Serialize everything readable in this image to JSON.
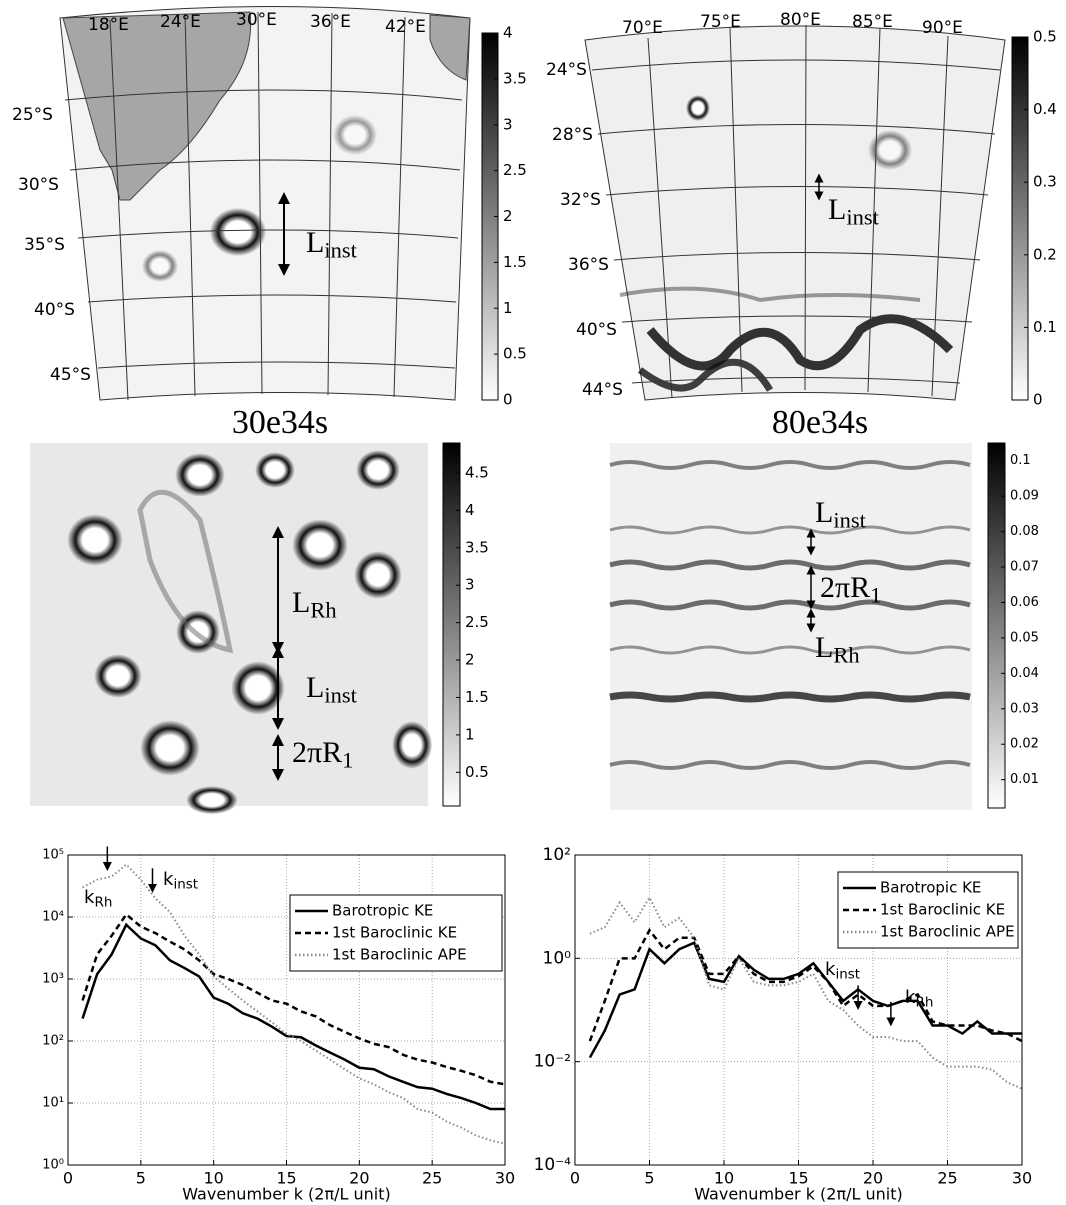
{
  "maps": [
    {
      "lon_labels": [
        "18°E",
        "24°E",
        "30°E",
        "36°E",
        "42°E"
      ],
      "lat_labels": [
        "25°S",
        "30°S",
        "35°S",
        "40°S",
        "45°S"
      ],
      "caption": "30e34s",
      "colorbar_lim": [
        0,
        4
      ],
      "colorbar_ticks": [
        0,
        0.5,
        1,
        1.5,
        2,
        2.5,
        3,
        3.5,
        4
      ],
      "annotations": [
        {
          "main": "L",
          "sub": "inst"
        }
      ]
    },
    {
      "lon_labels": [
        "70°E",
        "75°E",
        "80°E",
        "85°E",
        "90°E"
      ],
      "lat_labels": [
        "24°S",
        "28°S",
        "32°S",
        "36°S",
        "40°S",
        "44°S"
      ],
      "caption": "80e34s",
      "colorbar_lim": [
        0,
        0.5
      ],
      "colorbar_ticks": [
        0,
        0.1,
        0.2,
        0.3,
        0.4,
        0.5
      ],
      "annotations": [
        {
          "main": "L",
          "sub": "inst"
        }
      ]
    },
    {
      "colorbar_lim": [
        0.05,
        4.9
      ],
      "colorbar_ticks": [
        0.5,
        1,
        1.5,
        2,
        2.5,
        3,
        3.5,
        4,
        4.5
      ],
      "annotations": [
        {
          "main": "L",
          "sub": "Rh"
        },
        {
          "main": "L",
          "sub": "inst"
        },
        {
          "main": "2πR",
          "sub": "1"
        }
      ]
    },
    {
      "colorbar_lim": [
        0.002,
        0.105
      ],
      "colorbar_ticks": [
        0.01,
        0.02,
        0.03,
        0.04,
        0.05,
        0.06,
        0.07,
        0.08,
        0.09,
        0.1
      ],
      "annotations": [
        {
          "main": "L",
          "sub": "inst"
        },
        {
          "main": "2πR",
          "sub": "1"
        },
        {
          "main": "L",
          "sub": "Rh"
        }
      ]
    }
  ],
  "chart_data": [
    {
      "type": "line",
      "x_label": "Wavenumber k (2π/L unit)",
      "log_y": true,
      "grid": true,
      "x": [
        1,
        2,
        3,
        4,
        5,
        6,
        7,
        8,
        9,
        10,
        11,
        12,
        13,
        14,
        15,
        16,
        17,
        18,
        19,
        20,
        21,
        22,
        23,
        24,
        25,
        26,
        27,
        28,
        29,
        30
      ],
      "xlim": [
        0,
        30
      ],
      "xticks": [
        0,
        5,
        10,
        15,
        20,
        25,
        30
      ],
      "ylim": [
        1,
        100000
      ],
      "yticks": [
        {
          "value": 1,
          "label": "10⁰"
        },
        {
          "value": 10,
          "label": "10¹"
        },
        {
          "value": 100,
          "label": "10²"
        },
        {
          "value": 1000,
          "label": "10³"
        },
        {
          "value": 10000,
          "label": "10⁴"
        },
        {
          "value": 100000,
          "label": "10⁵"
        }
      ],
      "series": [
        {
          "name": "Barotropic KE",
          "color": "#000000",
          "dash": "solid",
          "values": [
            230,
            1200,
            2500,
            7500,
            4500,
            3500,
            2000,
            1500,
            1100,
            500,
            400,
            280,
            230,
            170,
            120,
            115,
            85,
            65,
            50,
            37,
            35,
            27,
            22,
            18,
            17,
            14,
            12,
            10,
            8,
            8
          ]
        },
        {
          "name": "1st Baroclinic KE",
          "color": "#000000",
          "dash": "dashed",
          "values": [
            450,
            2500,
            5000,
            11000,
            7000,
            5500,
            4000,
            3000,
            2000,
            1200,
            1000,
            800,
            600,
            450,
            400,
            300,
            250,
            180,
            140,
            110,
            90,
            80,
            60,
            50,
            45,
            38,
            33,
            28,
            22,
            20
          ]
        },
        {
          "name": "1st Baroclinic APE",
          "color": "#888888",
          "dash": "dotted",
          "values": [
            30000,
            40000,
            45000,
            70000,
            40000,
            20000,
            12000,
            5000,
            2500,
            1100,
            700,
            450,
            300,
            200,
            130,
            100,
            70,
            50,
            35,
            25,
            20,
            15,
            12,
            8,
            7,
            5,
            4,
            3,
            2.5,
            2.2
          ]
        }
      ],
      "annotations": [
        {
          "main": "k",
          "sub": "Rh",
          "x": 2.7
        },
        {
          "main": "k",
          "sub": "inst",
          "x": 5.8
        }
      ]
    },
    {
      "type": "line",
      "x_label": "Wavenumber k (2π/L unit)",
      "log_y": true,
      "grid": true,
      "x": [
        1,
        2,
        3,
        4,
        5,
        6,
        7,
        8,
        9,
        10,
        11,
        12,
        13,
        14,
        15,
        16,
        17,
        18,
        19,
        20,
        21,
        22,
        23,
        24,
        25,
        26,
        27,
        28,
        29,
        30
      ],
      "xlim": [
        0,
        30
      ],
      "xticks": [
        0,
        5,
        10,
        15,
        20,
        25,
        30
      ],
      "ylim": [
        0.0001,
        100
      ],
      "yticks": [
        {
          "value": 0.0001,
          "label": "10⁻⁴"
        },
        {
          "value": 0.01,
          "label": "10⁻²"
        },
        {
          "value": 1,
          "label": "10⁰"
        },
        {
          "value": 100,
          "label": "10²"
        }
      ],
      "series": [
        {
          "name": "Barotropic KE",
          "color": "#000000",
          "dash": "solid",
          "values": [
            0.012,
            0.04,
            0.2,
            0.25,
            1.5,
            0.8,
            1.5,
            2,
            0.4,
            0.35,
            1.1,
            0.6,
            0.4,
            0.4,
            0.5,
            0.8,
            0.35,
            0.15,
            0.25,
            0.15,
            0.12,
            0.15,
            0.15,
            0.05,
            0.05,
            0.035,
            0.06,
            0.035,
            0.035,
            0.035
          ]
        },
        {
          "name": "1st Baroclinic KE",
          "color": "#000000",
          "dash": "dashed",
          "values": [
            0.025,
            0.15,
            1,
            1,
            3.5,
            1.5,
            2.5,
            2.5,
            0.5,
            0.5,
            1.1,
            0.5,
            0.35,
            0.35,
            0.45,
            0.7,
            0.35,
            0.12,
            0.2,
            0.12,
            0.12,
            0.15,
            0.2,
            0.06,
            0.05,
            0.05,
            0.05,
            0.04,
            0.035,
            0.025
          ]
        },
        {
          "name": "1st Baroclinic APE",
          "color": "#888888",
          "dash": "dotted",
          "values": [
            3,
            4,
            12,
            5,
            15,
            4,
            6,
            2.5,
            0.3,
            0.25,
            1,
            0.35,
            0.3,
            0.3,
            0.35,
            0.5,
            0.15,
            0.1,
            0.05,
            0.03,
            0.03,
            0.025,
            0.025,
            0.012,
            0.008,
            0.008,
            0.008,
            0.007,
            0.004,
            0.003
          ]
        }
      ],
      "annotations": [
        {
          "main": "k",
          "sub": "inst",
          "x": 19
        },
        {
          "main": "k",
          "sub": "Rh",
          "x": 21.2
        }
      ]
    }
  ]
}
